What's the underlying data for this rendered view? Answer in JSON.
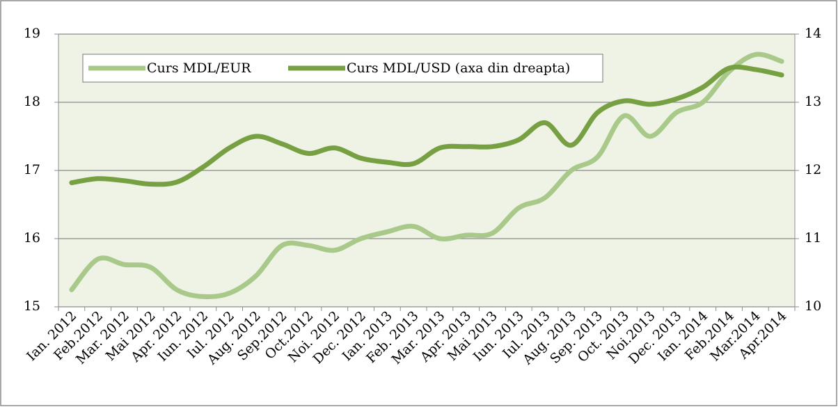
{
  "chart_data": {
    "type": "line",
    "categories": [
      "Ian. 2012",
      "Feb.2012",
      "Mar. 2012",
      "Mai 2012",
      "Apr. 2012",
      "Iun. 2012",
      "Iul. 2012",
      "Aug. 2012",
      "Sep.2012",
      "Oct.2012",
      "Noi. 2012",
      "Dec. 2012",
      "Ian. 2013",
      "Feb. 2013",
      "Mar. 2013",
      "Apr. 2013",
      "Mai 2013",
      "Iun. 2013",
      "Iul. 2013",
      "Aug. 2013",
      "Sep. 2013",
      "Oct. 2013",
      "Noi.2013",
      "Dec. 2013",
      "Ian. 2014",
      "Feb.2014",
      "Mar.2014",
      "Apr.2014"
    ],
    "series": [
      {
        "name": "Curs MDL/EUR",
        "color": "#a9c98a",
        "values": [
          15.25,
          15.7,
          15.62,
          15.58,
          15.25,
          15.15,
          15.2,
          15.45,
          15.9,
          15.9,
          15.83,
          16.0,
          16.1,
          16.18,
          16.0,
          16.05,
          16.08,
          16.45,
          16.6,
          17.0,
          17.2,
          17.8,
          17.5,
          17.85,
          18.0,
          18.45,
          18.7,
          18.6
        ]
      },
      {
        "name": "Curs MDL/USD (axa din dreapta)",
        "color": "#77a043",
        "axis": "y2",
        "values": [
          11.82,
          11.88,
          11.85,
          11.8,
          11.83,
          12.05,
          12.33,
          12.5,
          12.39,
          12.25,
          12.33,
          12.18,
          12.12,
          12.1,
          12.33,
          12.35,
          12.35,
          12.45,
          12.7,
          12.37,
          12.85,
          13.02,
          12.97,
          13.05,
          13.22,
          13.5,
          13.48,
          13.4
        ]
      }
    ],
    "ylim": [
      15,
      19
    ],
    "yticks": [
      15,
      16,
      17,
      18,
      19
    ],
    "y2lim": [
      10,
      14
    ],
    "y2ticks": [
      10,
      11,
      12,
      13,
      14
    ],
    "grid": true,
    "legend": "top-left"
  }
}
